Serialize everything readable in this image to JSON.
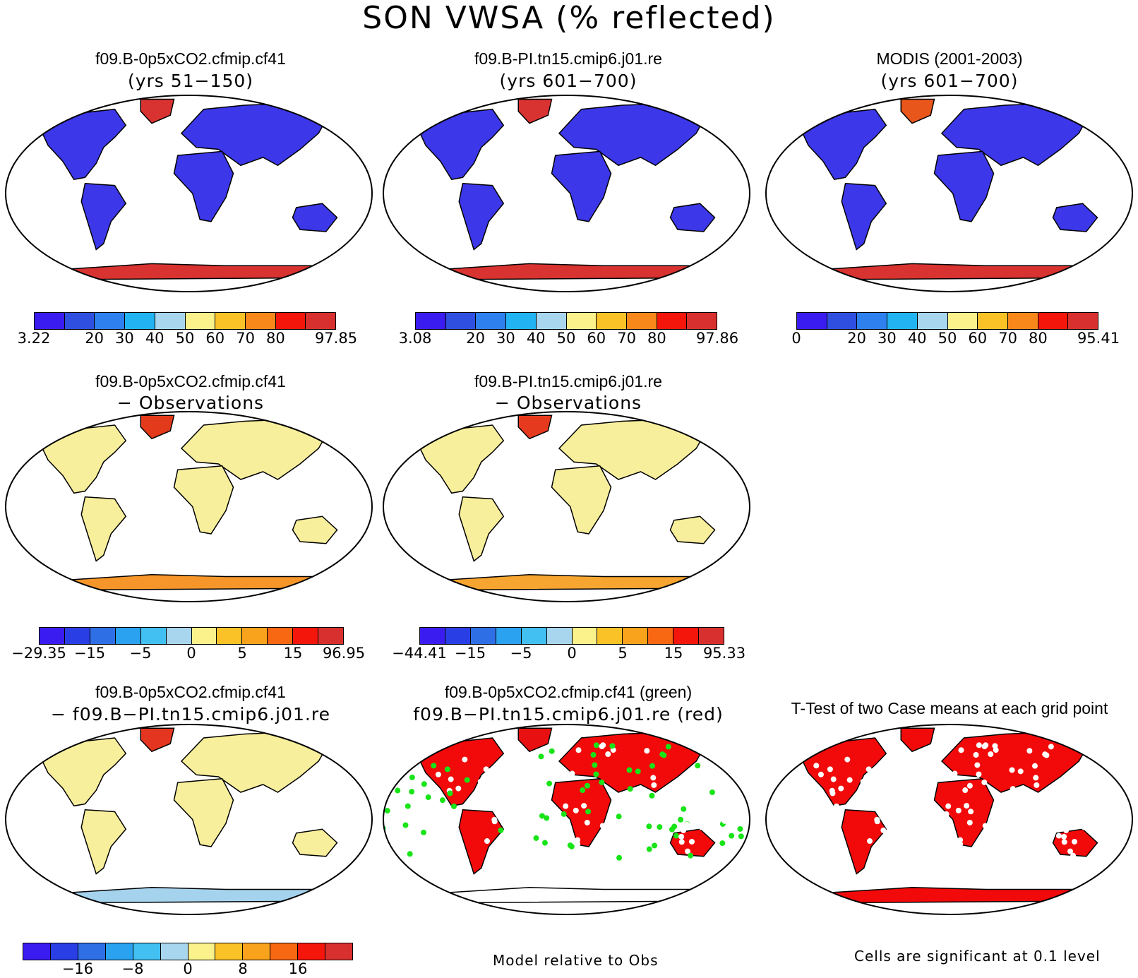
{
  "figure": {
    "title": "SON VWSA (% reflected)"
  },
  "colors": {
    "scale": [
      "#3a1cf0",
      "#2f4fe0",
      "#2e80ef",
      "#22b4f2",
      "#a8d6ef",
      "#fbf28c",
      "#fbc227",
      "#f9881a",
      "#f4160b",
      "#d8302e"
    ],
    "land_low": "#3c37e8",
    "land_mid": "#2f6ee6",
    "antarctic": "#d83330",
    "greenland": "#d83330",
    "diff_warm": "#f7c75a",
    "diff_pale": "#f8ef9c",
    "diff_cool": "#a5d3ee",
    "green": "#18e418",
    "red": "#f20a0a"
  },
  "panels": [
    {
      "id": "p1",
      "title1": "f09.B-0p5xCO2.cfmip.cf41",
      "title2": "(yrs 51−150)",
      "style": "abs",
      "ticks": [
        "3.22",
        "20",
        "30",
        "40",
        "50",
        "60",
        "70",
        "80",
        "97.85"
      ]
    },
    {
      "id": "p2",
      "title1": "f09.B-PI.tn15.cmip6.j01.re",
      "title2": "(yrs 601−700)",
      "style": "abs",
      "ticks": [
        "3.08",
        "20",
        "30",
        "40",
        "50",
        "60",
        "70",
        "80",
        "97.86"
      ]
    },
    {
      "id": "p3",
      "title1": "MODIS (2001-2003)",
      "title2": "(yrs 601−700)",
      "style": "obs",
      "ticks": [
        "0",
        "20",
        "30",
        "40",
        "50",
        "60",
        "70",
        "80",
        "95.41"
      ]
    },
    {
      "id": "p4",
      "title1": "f09.B-0p5xCO2.cfmip.cf41",
      "title2": "− Observations",
      "style": "diff1",
      "ticks": [
        "−29.35",
        "−15",
        "−5",
        "0",
        "5",
        "15",
        "96.95"
      ]
    },
    {
      "id": "p5",
      "title1": "f09.B-PI.tn15.cmip6.j01.re",
      "title2": "− Observations",
      "style": "diff2",
      "ticks": [
        "−44.41",
        "−15",
        "−5",
        "0",
        "5",
        "15",
        "95.33"
      ]
    },
    {
      "id": "p6",
      "title1": "f09.B-0p5xCO2.cfmip.cf41",
      "title2": "− f09.B−PI.tn15.cmip6.j01.re",
      "style": "diff3",
      "ticks": [
        "−16",
        "−8",
        "0",
        "8",
        "16"
      ]
    },
    {
      "id": "p7",
      "title1": "f09.B-0p5xCO2.cfmip.cf41 (green)",
      "title2": "f09.B−PI.tn15.cmip6.j01.re (red)",
      "style": "green",
      "note": "Model relative to Obs"
    },
    {
      "id": "p8",
      "title1": "T-Test of two Case means at each grid point",
      "style": "ttest",
      "note": "Cells are significant at 0.1 level"
    }
  ]
}
